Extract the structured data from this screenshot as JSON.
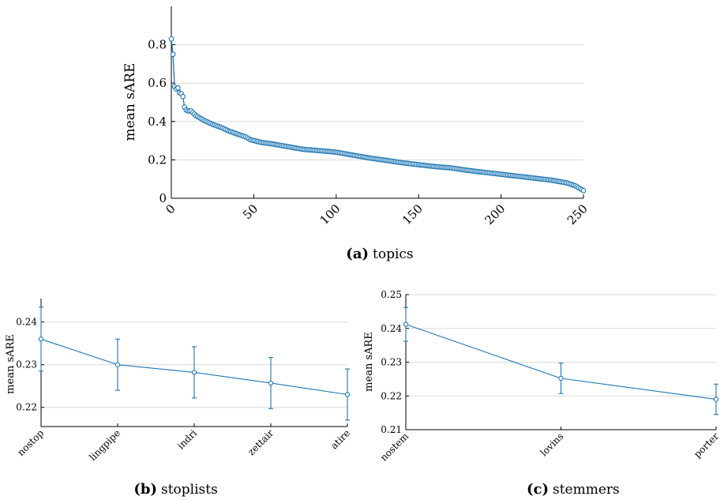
{
  "colors": {
    "series": "#1f77b4",
    "grid": "#d9d9d9",
    "axis": "#000000"
  },
  "captions": {
    "a": {
      "letter": "(a)",
      "text": "topics"
    },
    "b": {
      "letter": "(b)",
      "text": "stoplists"
    },
    "c": {
      "letter": "(c)",
      "text": "stemmers"
    }
  },
  "chart_data": [
    {
      "id": "a",
      "type": "line",
      "ylabel": "mean sARE",
      "xlim": [
        0,
        250
      ],
      "ylim": [
        0,
        1
      ],
      "xticks": [
        0,
        50,
        100,
        150,
        200,
        250
      ],
      "xtick_labels": [
        "0",
        "50",
        "100",
        "150",
        "200",
        "250"
      ],
      "yticks": [
        0,
        0.2,
        0.4,
        0.6,
        0.8
      ],
      "ytick_labels": [
        "0",
        "0.2",
        "0.4",
        "0.6",
        "0.8"
      ],
      "grid": true,
      "anchors": [
        [
          0,
          0.83
        ],
        [
          1,
          0.75
        ],
        [
          2,
          0.58
        ],
        [
          3,
          0.57
        ],
        [
          4,
          0.575
        ],
        [
          5,
          0.55
        ],
        [
          6,
          0.545
        ],
        [
          7,
          0.53
        ],
        [
          8,
          0.475
        ],
        [
          9,
          0.46
        ],
        [
          10,
          0.455
        ],
        [
          12,
          0.455
        ],
        [
          15,
          0.43
        ],
        [
          20,
          0.405
        ],
        [
          25,
          0.385
        ],
        [
          30,
          0.37
        ],
        [
          35,
          0.35
        ],
        [
          40,
          0.335
        ],
        [
          45,
          0.32
        ],
        [
          48,
          0.305
        ],
        [
          55,
          0.29
        ],
        [
          60,
          0.285
        ],
        [
          70,
          0.27
        ],
        [
          80,
          0.255
        ],
        [
          90,
          0.248
        ],
        [
          100,
          0.24
        ],
        [
          110,
          0.225
        ],
        [
          120,
          0.21
        ],
        [
          130,
          0.198
        ],
        [
          140,
          0.185
        ],
        [
          150,
          0.175
        ],
        [
          160,
          0.165
        ],
        [
          170,
          0.158
        ],
        [
          180,
          0.145
        ],
        [
          190,
          0.135
        ],
        [
          200,
          0.125
        ],
        [
          210,
          0.115
        ],
        [
          220,
          0.105
        ],
        [
          230,
          0.095
        ],
        [
          240,
          0.08
        ],
        [
          245,
          0.065
        ],
        [
          248,
          0.05
        ],
        [
          250,
          0.04
        ]
      ]
    },
    {
      "id": "b",
      "type": "line",
      "ylabel": "mean sARE",
      "categories": [
        "nostop",
        "lingpipe",
        "indri",
        "zettair",
        "atire"
      ],
      "values": [
        0.236,
        0.23,
        0.2282,
        0.2257,
        0.223
      ],
      "err": [
        0.0075,
        0.006,
        0.006,
        0.006,
        0.006
      ],
      "ylim": [
        0.2155,
        0.2455
      ],
      "yticks": [
        0.22,
        0.23,
        0.24
      ],
      "ytick_labels": [
        "0.22",
        "0.23",
        "0.24"
      ],
      "grid": true
    },
    {
      "id": "c",
      "type": "line",
      "ylabel": "mean sARE",
      "categories": [
        "nostem",
        "lovins",
        "porter"
      ],
      "values": [
        0.2412,
        0.2252,
        0.219
      ],
      "err": [
        0.005,
        0.0045,
        0.0045
      ],
      "ylim": [
        0.21,
        0.25
      ],
      "yticks": [
        0.21,
        0.22,
        0.23,
        0.24,
        0.25
      ],
      "ytick_labels": [
        "0.21",
        "0.22",
        "0.23",
        "0.24",
        "0.25"
      ],
      "grid": true
    }
  ]
}
